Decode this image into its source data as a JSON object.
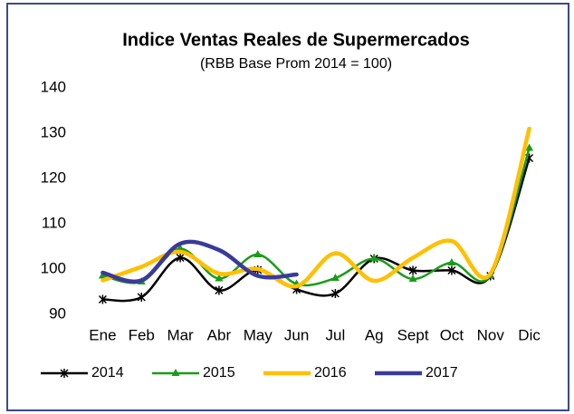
{
  "chart_data": {
    "type": "line",
    "title": "Indice Ventas Reales de Supermercados",
    "subtitle": "(RBB Base Prom 2014 = 100)",
    "categories": [
      "Ene",
      "Feb",
      "Mar",
      "Abr",
      "May",
      "Jun",
      "Jul",
      "Ag",
      "Sept",
      "Oct",
      "Nov",
      "Dic"
    ],
    "series": [
      {
        "name": "2014",
        "color": "#000000",
        "marker": "asterisk",
        "values": [
          93.3,
          93.8,
          102.5,
          95.3,
          99.8,
          95.5,
          94.6,
          102.3,
          99.7,
          99.7,
          98.5,
          124.5
        ]
      },
      {
        "name": "2015",
        "color": "#1a9c1a",
        "marker": "triangle",
        "values": [
          98.5,
          97.2,
          104.5,
          97.9,
          103.2,
          96.7,
          98.0,
          102.3,
          97.8,
          101.4,
          98.6,
          126.7
        ]
      },
      {
        "name": "2016",
        "color": "#ffc000",
        "marker": "none",
        "values": [
          97.5,
          100.5,
          103.8,
          99.0,
          100.0,
          96.2,
          103.5,
          97.4,
          102.5,
          106.2,
          99.0,
          131.0
        ]
      },
      {
        "name": "2017",
        "color": "#3a3a9a",
        "marker": "none",
        "values": [
          99.2,
          97.5,
          105.6,
          104.2,
          98.5,
          98.8,
          null,
          null,
          null,
          null,
          null,
          null
        ]
      }
    ],
    "ylim": [
      90,
      140
    ],
    "yticks": [
      90,
      100,
      110,
      120,
      130,
      140
    ],
    "smooth": true,
    "grid": false,
    "legend": "bottom"
  }
}
